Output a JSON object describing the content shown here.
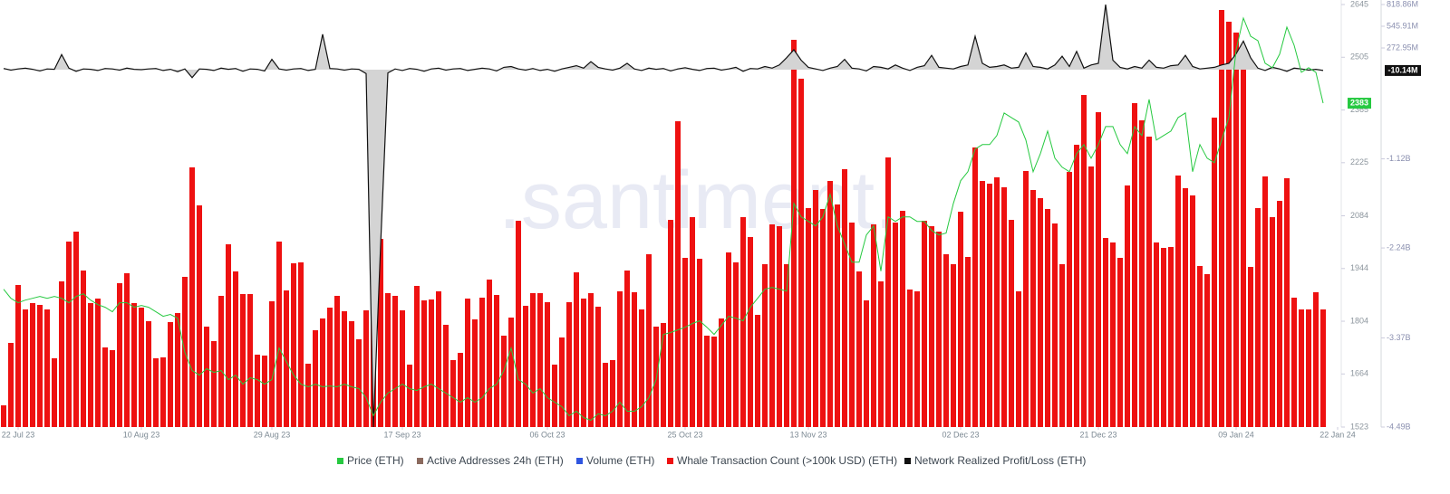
{
  "chart_data": {
    "type": "combo",
    "watermark": ".santiment.",
    "xlim": [
      -0.5,
      184.5
    ],
    "xticks": [
      {
        "value": 2,
        "label": "22 Jul 23"
      },
      {
        "value": 19,
        "label": "10 Aug 23"
      },
      {
        "value": 37,
        "label": "29 Aug 23"
      },
      {
        "value": 55,
        "label": "17 Sep 23"
      },
      {
        "value": 75,
        "label": "06 Oct 23"
      },
      {
        "value": 94,
        "label": "25 Oct 23"
      },
      {
        "value": 111,
        "label": "13 Nov 23"
      },
      {
        "value": 132,
        "label": "02 Dec 23"
      },
      {
        "value": 151,
        "label": "21 Dec 23"
      },
      {
        "value": 170,
        "label": "09 Jan 24"
      },
      {
        "value": 184,
        "label": "22 Jan 24"
      }
    ],
    "ylim": [
      1523,
      2645
    ],
    "yticks": [
      1523,
      1664,
      1804,
      1944,
      2084,
      2225,
      2365,
      2505,
      2645
    ],
    "y2lim": [
      -4490,
      818.86
    ],
    "y2ticks": [
      {
        "value": 818.86,
        "label": "818.86M"
      },
      {
        "value": 545.91,
        "label": "545.91M"
      },
      {
        "value": 272.95,
        "label": "272.95M"
      },
      {
        "value": -1120,
        "label": "-1.12B"
      },
      {
        "value": -2240,
        "label": "-2.24B"
      },
      {
        "value": -3370,
        "label": "-3.37B"
      },
      {
        "value": -4490,
        "label": "-4.49B"
      }
    ],
    "y3lim": [
      0,
      467
    ],
    "grid": false,
    "legend": "bottom",
    "series": [
      {
        "name": "Price (ETH)",
        "color": "#26c940",
        "kind": "line",
        "axis": "y",
        "values": [
          1889,
          1865,
          1853,
          1860,
          1865,
          1870,
          1865,
          1870,
          1865,
          1853,
          1870,
          1877,
          1860,
          1848,
          1841,
          1829,
          1853,
          1853,
          1841,
          1846,
          1841,
          1829,
          1817,
          1822,
          1812,
          1721,
          1673,
          1661,
          1678,
          1668,
          1673,
          1649,
          1661,
          1637,
          1654,
          1649,
          1637,
          1649,
          1733,
          1697,
          1661,
          1637,
          1630,
          1637,
          1630,
          1632,
          1630,
          1637,
          1630,
          1625,
          1601,
          1553,
          1589,
          1613,
          1625,
          1637,
          1625,
          1620,
          1630,
          1637,
          1625,
          1613,
          1601,
          1589,
          1601,
          1589,
          1601,
          1625,
          1637,
          1673,
          1733,
          1649,
          1637,
          1613,
          1625,
          1601,
          1589,
          1577,
          1553,
          1565,
          1548,
          1541,
          1558,
          1553,
          1565,
          1589,
          1565,
          1565,
          1577,
          1601,
          1649,
          1769,
          1774,
          1781,
          1788,
          1798,
          1805,
          1788,
          1769,
          1793,
          1817,
          1812,
          1805,
          1841,
          1865,
          1889,
          1894,
          1889,
          1884,
          2117,
          2081,
          2069,
          2057,
          2081,
          2141,
          2057,
          2009,
          1961,
          1961,
          2033,
          2057,
          1937,
          2081,
          2069,
          2081,
          2081,
          2069,
          2069,
          2045,
          2033,
          2038,
          2117,
          2177,
          2201,
          2261,
          2273,
          2273,
          2297,
          2357,
          2345,
          2333,
          2285,
          2201,
          2249,
          2309,
          2237,
          2213,
          2201,
          2249,
          2273,
          2237,
          2273,
          2321,
          2321,
          2273,
          2249,
          2321,
          2297,
          2393,
          2285,
          2297,
          2309,
          2345,
          2357,
          2201,
          2273,
          2237,
          2225,
          2285,
          2345,
          2525,
          2609,
          2561,
          2549,
          2489,
          2477,
          2513,
          2585,
          2537,
          2465,
          2477,
          2465,
          2383
        ]
      },
      {
        "name": "Active Addresses 24h (ETH)",
        "color": "#8b6a5e"
      },
      {
        "name": "Volume (ETH)",
        "color": "#2f55e0"
      },
      {
        "name": "Whale Transaction Count (>100k USD) (ETH)",
        "color": "#ee1111",
        "kind": "bar",
        "axis": "y3",
        "values": [
          24,
          93,
          157,
          130,
          137,
          135,
          130,
          76,
          161,
          205,
          216,
          173,
          137,
          142,
          88,
          85,
          159,
          170,
          137,
          132,
          117,
          76,
          77,
          116,
          126,
          166,
          287,
          245,
          111,
          95,
          145,
          202,
          172,
          147,
          147,
          80,
          79,
          139,
          205,
          151,
          181,
          182,
          70,
          107,
          120,
          132,
          145,
          128,
          117,
          97,
          129,
          236,
          208,
          148,
          145,
          129,
          69,
          156,
          140,
          141,
          150,
          113,
          74,
          82,
          142,
          119,
          143,
          163,
          146,
          101,
          121,
          228,
          134,
          148,
          148,
          138,
          69,
          99,
          138,
          171,
          142,
          148,
          133,
          71,
          74,
          150,
          173,
          149,
          130,
          191,
          111,
          115,
          229,
          338,
          187,
          232,
          186,
          101,
          100,
          120,
          193,
          182,
          232,
          210,
          124,
          180,
          224,
          222,
          180,
          428,
          385,
          242,
          262,
          241,
          272,
          246,
          285,
          226,
          172,
          140,
          224,
          161,
          298,
          226,
          239,
          152,
          150,
          228,
          222,
          216,
          191,
          180,
          238,
          188,
          309,
          272,
          269,
          276,
          265,
          229,
          150,
          283,
          262,
          253,
          241,
          225,
          180,
          282,
          312,
          367,
          288,
          348,
          209,
          204,
          187,
          267,
          358,
          339,
          321,
          204,
          198,
          199,
          278,
          264,
          256,
          178,
          169,
          342,
          461,
          448,
          436,
          407,
          177,
          242,
          277,
          232,
          250,
          275,
          143,
          130,
          130,
          149,
          130
        ]
      },
      {
        "name": "Network Realized Profit/Loss (ETH)",
        "color": "#111111",
        "kind": "area",
        "axis": "y2",
        "last_label": "-10.14M",
        "values": [
          15,
          -5,
          10,
          20,
          5,
          -15,
          10,
          5,
          190,
          20,
          -20,
          10,
          5,
          -10,
          15,
          10,
          -5,
          20,
          5,
          0,
          10,
          15,
          -10,
          5,
          -25,
          10,
          -100,
          10,
          5,
          -10,
          20,
          5,
          15,
          -20,
          10,
          5,
          -15,
          130,
          10,
          -5,
          10,
          15,
          -10,
          5,
          445,
          15,
          10,
          -5,
          10,
          5,
          -50,
          -4490,
          -2200,
          -40,
          10,
          -10,
          15,
          5,
          -20,
          10,
          20,
          -5,
          10,
          15,
          -10,
          5,
          20,
          10,
          -15,
          30,
          40,
          10,
          -5,
          15,
          -10,
          5,
          -20,
          10,
          30,
          50,
          20,
          100,
          30,
          10,
          -5,
          20,
          80,
          10,
          -10,
          20,
          5,
          15,
          -15,
          10,
          25,
          5,
          -10,
          15,
          20,
          -5,
          10,
          30,
          -20,
          15,
          10,
          40,
          20,
          60,
          150,
          250,
          120,
          30,
          10,
          -10,
          20,
          40,
          130,
          20,
          10,
          -15,
          40,
          30,
          10,
          60,
          20,
          -10,
          30,
          50,
          180,
          30,
          20,
          10,
          40,
          60,
          420,
          80,
          30,
          40,
          60,
          20,
          30,
          210,
          40,
          30,
          10,
          60,
          170,
          40,
          230,
          20,
          60,
          80,
          818,
          120,
          30,
          10,
          40,
          20,
          120,
          30,
          20,
          50,
          60,
          180,
          40,
          10,
          20,
          30,
          60,
          80,
          200,
          360,
          150,
          20,
          -10,
          30,
          10,
          -20,
          20,
          10,
          -5,
          5,
          -10.14
        ]
      }
    ]
  }
}
